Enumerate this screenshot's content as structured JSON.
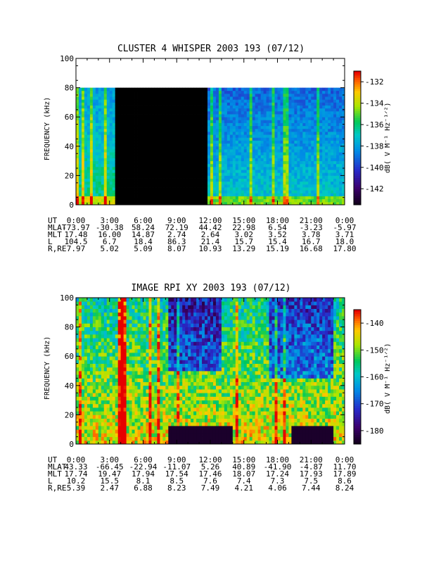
{
  "panels": [
    {
      "title": "CLUSTER 4 WHISPER 2003 193 (07/12)",
      "ylabel": "FREQUENCY (kHz)",
      "yticks": [
        "0",
        "20",
        "40",
        "60",
        "80",
        "100"
      ],
      "colorbar": {
        "label": "dB( V M⁻¹ Hz⁻¹ᐟ²)",
        "ticks": [
          "-132",
          "-134",
          "-136",
          "-138",
          "-140",
          "-142"
        ],
        "range": [
          -143.5,
          -131
        ]
      },
      "table": {
        "labels": [
          "UT",
          "MLAT",
          "MLT",
          "L",
          "R,RE"
        ],
        "rows": [
          [
            "0:00",
            "3:00",
            "6:00",
            "9:00",
            "12:00",
            "15:00",
            "18:00",
            "21:00",
            "0:00"
          ],
          [
            "-73.97",
            "-30.38",
            "58.24",
            "72.19",
            "44.42",
            "22.98",
            "6.54",
            "-3.23",
            "-5.97"
          ],
          [
            "17.48",
            "16.00",
            "14.87",
            "2.74",
            "2.64",
            "3.02",
            "3.52",
            "3.78",
            "3.71"
          ],
          [
            "104.5",
            "6.7",
            "18.4",
            "86.3",
            "21.4",
            "15.7",
            "15.4",
            "16.7",
            "18.0"
          ],
          [
            "7.97",
            "5.02",
            "5.09",
            "8.07",
            "10.93",
            "13.29",
            "15.19",
            "16.68",
            "17.80"
          ]
        ]
      }
    },
    {
      "title": "IMAGE RPI XY 2003 193 (07/12)",
      "ylabel": "FREQUENCY (kHz)",
      "yticks": [
        "0",
        "20",
        "40",
        "60",
        "80",
        "100"
      ],
      "colorbar": {
        "label": "dB( V M⁻¹ Hz⁻¹ᐟ²)",
        "ticks": [
          "-140",
          "-150",
          "-160",
          "-170",
          "-180"
        ],
        "range": [
          -185,
          -135
        ]
      },
      "table": {
        "labels": [
          "UT",
          "MLAT",
          "MLT",
          "L",
          "R,RE"
        ],
        "rows": [
          [
            "0:00",
            "3:00",
            "6:00",
            "9:00",
            "12:00",
            "15:00",
            "18:00",
            "21:00",
            "0:00"
          ],
          [
            "43.33",
            "-66.45",
            "-22.94",
            "-11.07",
            "5.26",
            "40.89",
            "-41.90",
            "-4.87",
            "11.70"
          ],
          [
            "17.74",
            "19.47",
            "17.94",
            "17.54",
            "17.46",
            "18.07",
            "17.24",
            "17.93",
            "17.89"
          ],
          [
            "10.2",
            "15.5",
            "8.1",
            "8.5",
            "7.6",
            "7.4",
            "7.3",
            "7.5",
            "8.6"
          ],
          [
            "5.39",
            "2.47",
            "6.88",
            "8.23",
            "7.49",
            "4.21",
            "4.06",
            "7.44",
            "8.24"
          ]
        ]
      }
    }
  ],
  "chart_data": [
    {
      "type": "heatmap",
      "title": "CLUSTER 4 WHISPER 2003 193 (07/12)",
      "ylabel": "FREQUENCY (kHz)",
      "ylim": [
        0,
        100
      ],
      "xlim_hours": [
        0,
        24
      ],
      "data_max_frequency_khz": 80,
      "data_gap_hours": [
        3.4,
        11.6
      ],
      "colorbar_label": "dB( V M⁻¹ Hz⁻¹ᐟ²)",
      "colorbar_range": [
        -143.5,
        -131
      ],
      "colorscale": "rainbow"
    },
    {
      "type": "heatmap",
      "title": "IMAGE RPI XY 2003 193 (07/12)",
      "ylabel": "FREQUENCY (kHz)",
      "ylim": [
        0,
        100
      ],
      "xlim_hours": [
        0,
        24
      ],
      "colorbar_label": "dB( V M⁻¹ Hz⁻¹ᐟ²)",
      "colorbar_range": [
        -185,
        -135
      ],
      "colorscale": "rainbow"
    }
  ]
}
